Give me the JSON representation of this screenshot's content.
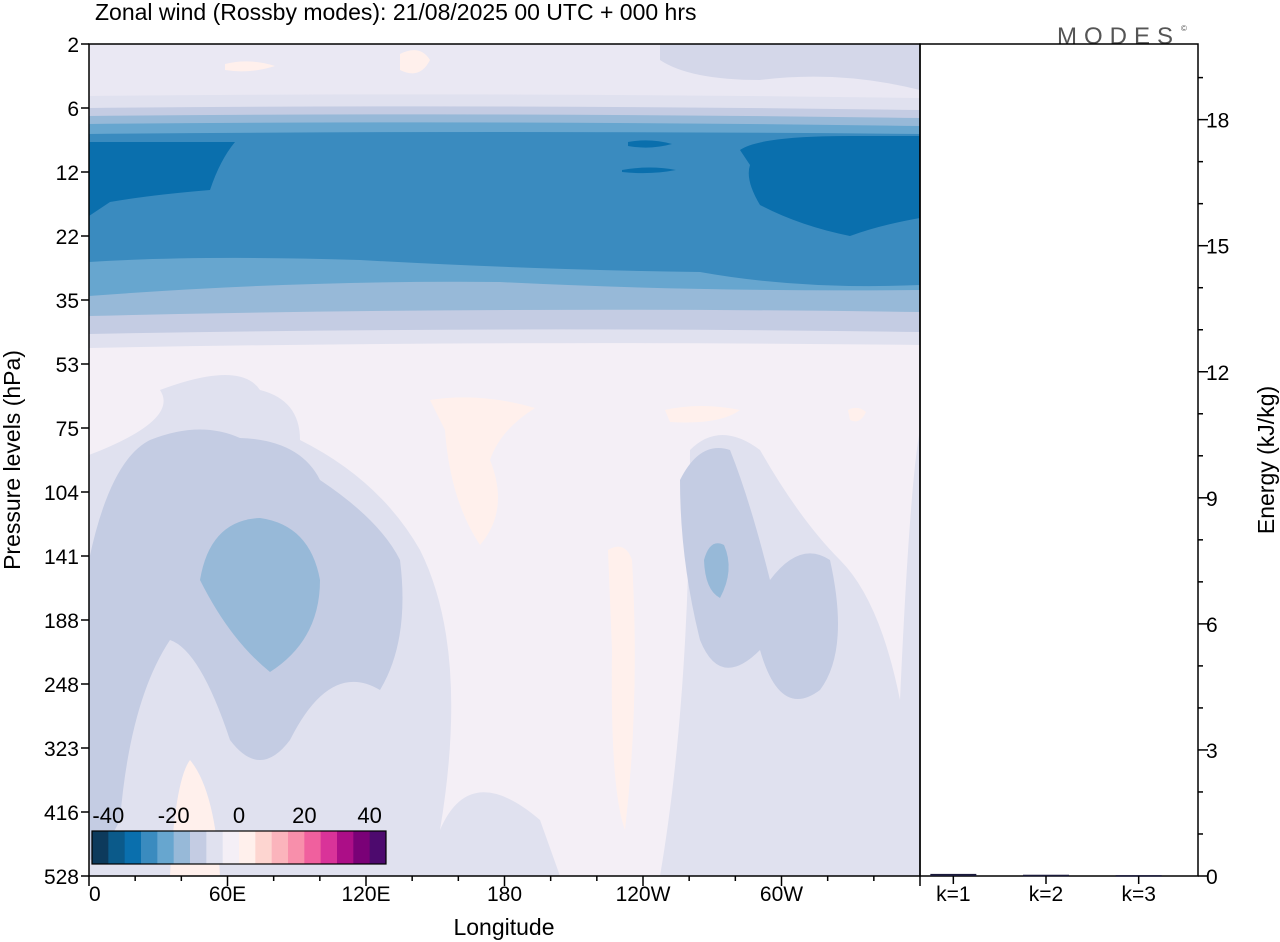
{
  "chart_data": [
    {
      "type": "heatmap",
      "title": "Zonal wind (Rossby modes):  21/08/2025  00 UTC  + 000 hrs",
      "xlabel": "Longitude",
      "ylabel": "Pressure levels (hPa)",
      "x_ticks": [
        "0",
        "60E",
        "120E",
        "180",
        "120W",
        "60W"
      ],
      "y_ticks": [
        "2",
        "6",
        "12",
        "22",
        "35",
        "53",
        "75",
        "104",
        "141",
        "188",
        "248",
        "323",
        "416",
        "528"
      ],
      "colorbar": {
        "tick_labels": [
          "-40",
          "-20",
          "0",
          "20",
          "40"
        ],
        "range": [
          -45,
          45
        ],
        "step": 5,
        "colors": [
          "#0d3a5c",
          "#0b5a8a",
          "#0a6fad",
          "#3a8bbf",
          "#67a6cf",
          "#97b9d8",
          "#c4cce3",
          "#e0e1ef",
          "#f4eff6",
          "#fff0ec",
          "#fdd5d0",
          "#fbb4bc",
          "#f88fab",
          "#f0609e",
          "#d93399",
          "#ac0e87",
          "#7a0177",
          "#4d0a6e"
        ]
      }
    },
    {
      "type": "bar",
      "ylabel": "Energy (kJ/kg)",
      "categories": [
        "k=1",
        "k=2",
        "k=3"
      ],
      "values": [
        0.05,
        0.03,
        0.02
      ],
      "ylim": [
        0,
        19.8
      ],
      "y_ticks": [
        0,
        3,
        6,
        9,
        12,
        15,
        18
      ]
    }
  ],
  "logo": {
    "text": "MODES",
    "mark": "©"
  }
}
